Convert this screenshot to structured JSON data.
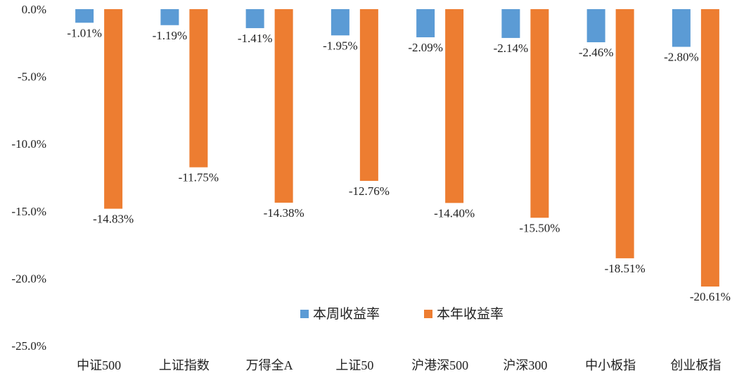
{
  "chart_data": {
    "type": "bar",
    "title": "",
    "xlabel": "",
    "ylabel": "",
    "categories": [
      "中证500",
      "上证指数",
      "万得全A",
      "上证50",
      "沪港深500",
      "沪深300",
      "中小板指",
      "创业板指"
    ],
    "series": [
      {
        "name": "本周收益率",
        "color": "#5B9BD5",
        "values": [
          -1.01,
          -1.19,
          -1.41,
          -1.95,
          -2.09,
          -2.14,
          -2.46,
          -2.8
        ],
        "labels": [
          "-1.01%",
          "-1.19%",
          "-1.41%",
          "-1.95%",
          "-2.09%",
          "-2.14%",
          "-2.46%",
          "-2.80%"
        ]
      },
      {
        "name": "本年收益率",
        "color": "#ED7D31",
        "values": [
          -14.83,
          -11.75,
          -14.38,
          -12.76,
          -14.4,
          -15.5,
          -18.51,
          -20.61
        ],
        "labels": [
          "-14.83%",
          "-11.75%",
          "-14.38%",
          "-12.76%",
          "-14.40%",
          "-15.50%",
          "-18.51%",
          "-20.61%"
        ]
      }
    ],
    "ylim": [
      -25,
      0
    ],
    "yticks": [
      0,
      -5,
      -10,
      -15,
      -20,
      -25
    ],
    "ytick_labels": [
      "0.0%",
      "-5.0%",
      "-10.0%",
      "-15.0%",
      "-20.0%",
      "-25.0%"
    ],
    "grid": false,
    "legend_position": "inside-bottom-center"
  }
}
